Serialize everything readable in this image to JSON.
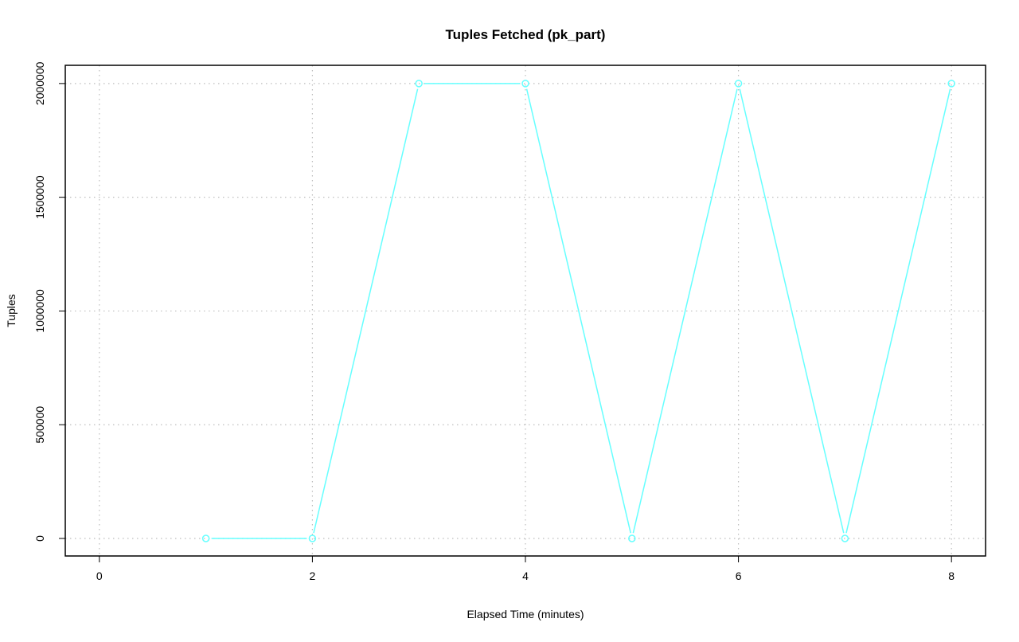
{
  "chart_data": {
    "type": "line",
    "title": "Tuples Fetched (pk_part)",
    "xlabel": "Elapsed Time (minutes)",
    "ylabel": "Tuples",
    "x": [
      1,
      2,
      3,
      4,
      5,
      6,
      7,
      8
    ],
    "series": [
      {
        "values": [
          0,
          0,
          2000000,
          2000000,
          0,
          2000000,
          0,
          2000000
        ],
        "color": "#66FFFF",
        "marker": "open-circle"
      }
    ],
    "xlim": [
      -0.32,
      8.32
    ],
    "ylim": [
      -77000,
      2080000
    ],
    "xticks": [
      0,
      2,
      4,
      6,
      8
    ],
    "yticks": [
      0,
      500000,
      1000000,
      1500000,
      2000000
    ],
    "xtick_labels": [
      "0",
      "2",
      "4",
      "6",
      "8"
    ],
    "ytick_labels": [
      "0",
      "500000",
      "1000000",
      "1500000",
      "2000000"
    ],
    "grid": true,
    "grid_color": "#BEBEBE",
    "legend": "none"
  }
}
